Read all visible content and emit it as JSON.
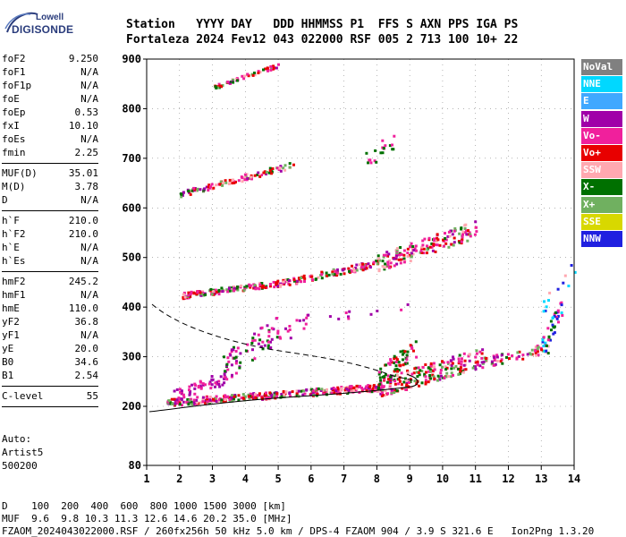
{
  "logo": {
    "top": "Lowell",
    "bottom": "DIGISONDE"
  },
  "header": {
    "labels": "Station   YYYY DAY   DDD HHMMSS P1  FFS S AXN PPS IGA PS",
    "values": "Fortaleza 2024 Fev12 043 022000 RSF 005 2 713 100 10+ 22"
  },
  "params": [
    [
      {
        "k": "foF2",
        "v": "9.250"
      },
      {
        "k": "foF1",
        "v": "N/A"
      },
      {
        "k": "foF1p",
        "v": "N/A"
      },
      {
        "k": "foE",
        "v": "N/A"
      },
      {
        "k": "foEp",
        "v": "0.53"
      },
      {
        "k": "fxI",
        "v": "10.10"
      },
      {
        "k": "foEs",
        "v": "N/A"
      },
      {
        "k": "fmin",
        "v": "2.25"
      }
    ],
    [
      {
        "k": "MUF(D)",
        "v": "35.01"
      },
      {
        "k": "M(D)",
        "v": "3.78"
      },
      {
        "k": "D",
        "v": "N/A"
      }
    ],
    [
      {
        "k": "h`F",
        "v": "210.0"
      },
      {
        "k": "h`F2",
        "v": "210.0"
      },
      {
        "k": "h`E",
        "v": "N/A"
      },
      {
        "k": "h`Es",
        "v": "N/A"
      }
    ],
    [
      {
        "k": "hmF2",
        "v": "245.2"
      },
      {
        "k": "hmF1",
        "v": "N/A"
      },
      {
        "k": "hmE",
        "v": "110.0"
      },
      {
        "k": "yF2",
        "v": "36.8"
      },
      {
        "k": "yF1",
        "v": "N/A"
      },
      {
        "k": "yE",
        "v": "20.0"
      },
      {
        "k": "B0",
        "v": "34.6"
      },
      {
        "k": "B1",
        "v": "2.54"
      }
    ],
    [
      {
        "k": "C-level",
        "v": "55"
      }
    ]
  ],
  "auto": [
    "Auto:",
    "Artist5",
    "500200"
  ],
  "legend": [
    {
      "label": "NoVal",
      "color": "#808080"
    },
    {
      "label": "NNE",
      "color": "#00d8ff"
    },
    {
      "label": "E",
      "color": "#40a8ff"
    },
    {
      "label": "W",
      "color": "#a000a8"
    },
    {
      "label": "Vo-",
      "color": "#f0209c"
    },
    {
      "label": "Vo+",
      "color": "#e80000"
    },
    {
      "label": "SSW",
      "color": "#ffa8b0"
    },
    {
      "label": "X-",
      "color": "#007000"
    },
    {
      "label": "X+",
      "color": "#70b060"
    },
    {
      "label": "SSE",
      "color": "#d8d800"
    },
    {
      "label": "NNW",
      "color": "#2020e0"
    }
  ],
  "axes": {
    "x_ticks": [
      "1",
      "2",
      "3",
      "4",
      "5",
      "6",
      "7",
      "8",
      "9",
      "10",
      "11",
      "12",
      "13",
      "14"
    ],
    "y_ticks": [
      "80",
      "200",
      "300",
      "400",
      "500",
      "600",
      "700",
      "800",
      "900"
    ]
  },
  "footer": {
    "line1": "D    100  200  400  600  800 1000 1500 3000 [km]",
    "line2": "MUF  9.6  9.8 10.3 11.3 12.6 14.6 20.2 35.0 [MHz]",
    "line3": "FZAOM_2024043022000.RSF / 260fx256h 50 kHz 5.0 km / DPS-4 FZAOM 904 / 3.9 S 321.6 E   Ion2Png 1.3.20"
  }
}
